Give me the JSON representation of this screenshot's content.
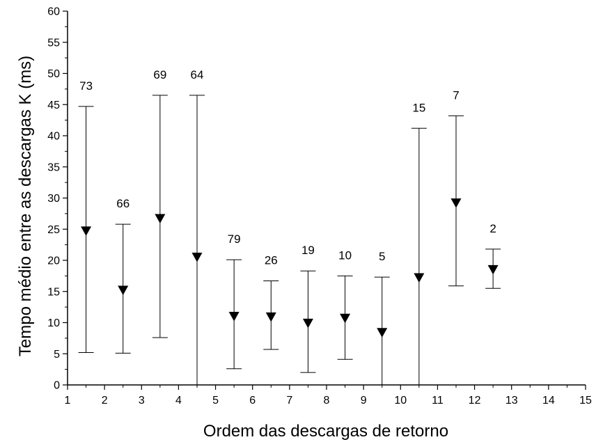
{
  "chart_data": {
    "type": "scatter",
    "xlabel": "Ordem das descargas de retorno",
    "ylabel": "Tempo médio entre as descargas K (ms)",
    "xlim": [
      1,
      15
    ],
    "ylim": [
      0,
      60
    ],
    "xticks": [
      1,
      2,
      3,
      4,
      5,
      6,
      7,
      8,
      9,
      10,
      11,
      12,
      13,
      14,
      15
    ],
    "yticks": [
      0,
      5,
      10,
      15,
      20,
      25,
      30,
      35,
      40,
      45,
      50,
      55,
      60
    ],
    "grid": false,
    "marker": "down-triangle",
    "marker_color": "#000000",
    "points": [
      {
        "x": 1.5,
        "y": 24.8,
        "low": 5.2,
        "high": 44.7,
        "count": "73"
      },
      {
        "x": 2.5,
        "y": 15.3,
        "low": 5.1,
        "high": 25.8,
        "count": "66"
      },
      {
        "x": 3.5,
        "y": 26.8,
        "low": 7.6,
        "high": 46.5,
        "count": "69"
      },
      {
        "x": 4.5,
        "y": 20.6,
        "low": 0,
        "high": 46.5,
        "count": "64"
      },
      {
        "x": 5.5,
        "y": 11.1,
        "low": 2.6,
        "high": 20.1,
        "count": "79"
      },
      {
        "x": 6.5,
        "y": 11.0,
        "low": 5.7,
        "high": 16.7,
        "count": "26"
      },
      {
        "x": 7.5,
        "y": 10.0,
        "low": 2.0,
        "high": 18.3,
        "count": "19"
      },
      {
        "x": 8.5,
        "y": 10.8,
        "low": 4.1,
        "high": 17.5,
        "count": "10"
      },
      {
        "x": 9.5,
        "y": 8.5,
        "low": 0,
        "high": 17.3,
        "count": "5"
      },
      {
        "x": 10.5,
        "y": 17.3,
        "low": 0,
        "high": 41.2,
        "count": "15"
      },
      {
        "x": 11.5,
        "y": 29.3,
        "low": 15.9,
        "high": 43.2,
        "count": "7"
      },
      {
        "x": 12.5,
        "y": 18.6,
        "low": 15.5,
        "high": 21.8,
        "count": "2"
      }
    ]
  }
}
